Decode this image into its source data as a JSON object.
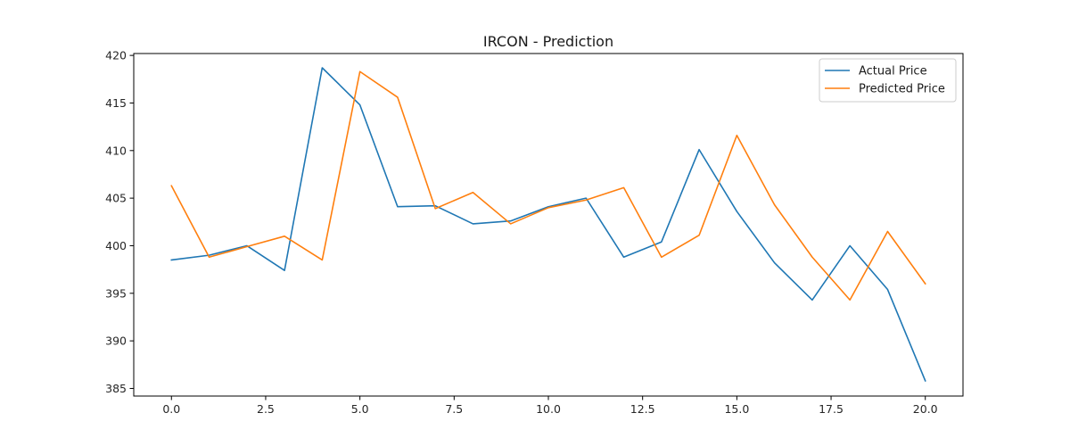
{
  "chart_data": {
    "type": "line",
    "title": "IRCON - Prediction",
    "xlabel": "",
    "ylabel": "",
    "xlim": [
      -1.0,
      21.0
    ],
    "ylim": [
      384.2,
      420.2
    ],
    "xticks": [
      0.0,
      2.5,
      5.0,
      7.5,
      10.0,
      12.5,
      15.0,
      17.5,
      20.0
    ],
    "xtick_labels": [
      "0.0",
      "2.5",
      "5.0",
      "7.5",
      "10.0",
      "12.5",
      "15.0",
      "17.5",
      "20.0"
    ],
    "yticks": [
      385,
      390,
      395,
      400,
      405,
      410,
      415,
      420
    ],
    "ytick_labels": [
      "385",
      "390",
      "395",
      "400",
      "405",
      "410",
      "415",
      "420"
    ],
    "grid": false,
    "legend_position": "top-right",
    "x": [
      0,
      1,
      2,
      3,
      4,
      5,
      6,
      7,
      8,
      9,
      10,
      11,
      12,
      13,
      14,
      15,
      16,
      17,
      18,
      19,
      20
    ],
    "series": [
      {
        "name": "Actual Price",
        "color": "#1f77b4",
        "values": [
          398.5,
          399.0,
          400.0,
          397.4,
          418.7,
          414.8,
          404.1,
          404.2,
          402.3,
          402.6,
          404.1,
          405.0,
          398.8,
          400.4,
          410.1,
          403.6,
          398.2,
          394.3,
          400.0,
          395.4,
          385.8
        ]
      },
      {
        "name": "Predicted Price",
        "color": "#ff7f0e",
        "values": [
          406.3,
          398.8,
          399.9,
          401.0,
          398.5,
          418.3,
          415.6,
          403.9,
          405.6,
          402.3,
          404.0,
          404.8,
          406.1,
          398.8,
          401.1,
          411.6,
          404.3,
          398.8,
          394.3,
          401.5,
          396.0
        ]
      }
    ]
  }
}
